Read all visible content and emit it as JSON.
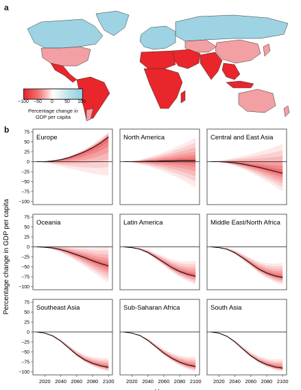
{
  "panel_a_label": "a",
  "panel_b_label": "b",
  "map": {
    "legend_ticks": [
      "−100",
      "−50",
      "0",
      "50",
      "100"
    ],
    "legend_title_line1": "Percentage change in",
    "legend_title_line2": "GDP per capita",
    "colors": {
      "strong_negative": "#e8262b",
      "mild_negative": "#f2a0a3",
      "positive": "#9dd3e3",
      "border": "#333333"
    }
  },
  "chart_data": {
    "type": "area",
    "ylabel": "Percentage change in GDP per capita",
    "xlabel": "Year",
    "x_ticks": [
      2020,
      2040,
      2060,
      2080,
      2100
    ],
    "y_ticks": [
      75,
      50,
      25,
      0,
      -25,
      -50,
      -75,
      -100
    ],
    "xlim": [
      2005,
      2105
    ],
    "ylim": [
      -108,
      82
    ],
    "colors": {
      "band": "#e8262b",
      "median": "#111111"
    },
    "panels": [
      {
        "name": "Europe",
        "median": {
          "x": [
            2010,
            2020,
            2030,
            2040,
            2050,
            2060,
            2070,
            2080,
            2090,
            2100
          ],
          "y": [
            0,
            0,
            2,
            5,
            10,
            17,
            25,
            35,
            47,
            62
          ]
        },
        "band_2100": [
          -35,
          75
        ]
      },
      {
        "name": "North America",
        "median": {
          "x": [
            2010,
            2020,
            2030,
            2040,
            2050,
            2060,
            2070,
            2080,
            2090,
            2100
          ],
          "y": [
            0,
            0,
            0,
            1,
            1,
            2,
            2,
            3,
            3,
            3
          ]
        },
        "band_2100": [
          -65,
          60
        ]
      },
      {
        "name": "Central and East Asia",
        "median": {
          "x": [
            2010,
            2020,
            2030,
            2040,
            2050,
            2060,
            2070,
            2080,
            2090,
            2100
          ],
          "y": [
            0,
            0,
            -1,
            -3,
            -6,
            -10,
            -14,
            -19,
            -24,
            -29
          ]
        },
        "band_2100": [
          -75,
          45
        ]
      },
      {
        "name": "Oceania",
        "median": {
          "x": [
            2010,
            2020,
            2030,
            2040,
            2050,
            2060,
            2070,
            2080,
            2090,
            2100
          ],
          "y": [
            0,
            -1,
            -3,
            -7,
            -13,
            -20,
            -27,
            -35,
            -42,
            -48
          ]
        },
        "band_2100": [
          -90,
          2
        ]
      },
      {
        "name": "Latin America",
        "median": {
          "x": [
            2010,
            2020,
            2030,
            2040,
            2050,
            2060,
            2070,
            2080,
            2090,
            2100
          ],
          "y": [
            0,
            -2,
            -6,
            -14,
            -26,
            -39,
            -52,
            -62,
            -69,
            -74
          ]
        },
        "band_2100": [
          -95,
          -35
        ]
      },
      {
        "name": "Middle East/North Africa",
        "median": {
          "x": [
            2010,
            2020,
            2030,
            2040,
            2050,
            2060,
            2070,
            2080,
            2090,
            2100
          ],
          "y": [
            0,
            -2,
            -6,
            -15,
            -28,
            -42,
            -56,
            -66,
            -73,
            -77
          ]
        },
        "band_2100": [
          -96,
          -40
        ]
      },
      {
        "name": "Southeast Asia",
        "median": {
          "x": [
            2010,
            2020,
            2030,
            2040,
            2050,
            2060,
            2070,
            2080,
            2090,
            2100
          ],
          "y": [
            0,
            -3,
            -10,
            -23,
            -40,
            -57,
            -70,
            -79,
            -85,
            -89
          ]
        },
        "band_2100": [
          -100,
          -65
        ]
      },
      {
        "name": "Sub-Saharan Africa",
        "median": {
          "x": [
            2010,
            2020,
            2030,
            2040,
            2050,
            2060,
            2070,
            2080,
            2090,
            2100
          ],
          "y": [
            0,
            -3,
            -9,
            -21,
            -37,
            -53,
            -66,
            -76,
            -83,
            -87
          ]
        },
        "band_2100": [
          -100,
          -62
        ]
      },
      {
        "name": "South Asia",
        "median": {
          "x": [
            2010,
            2020,
            2030,
            2040,
            2050,
            2060,
            2070,
            2080,
            2090,
            2100
          ],
          "y": [
            0,
            -3,
            -11,
            -25,
            -43,
            -60,
            -73,
            -82,
            -88,
            -91
          ]
        },
        "band_2100": [
          -100,
          -68
        ]
      }
    ]
  }
}
